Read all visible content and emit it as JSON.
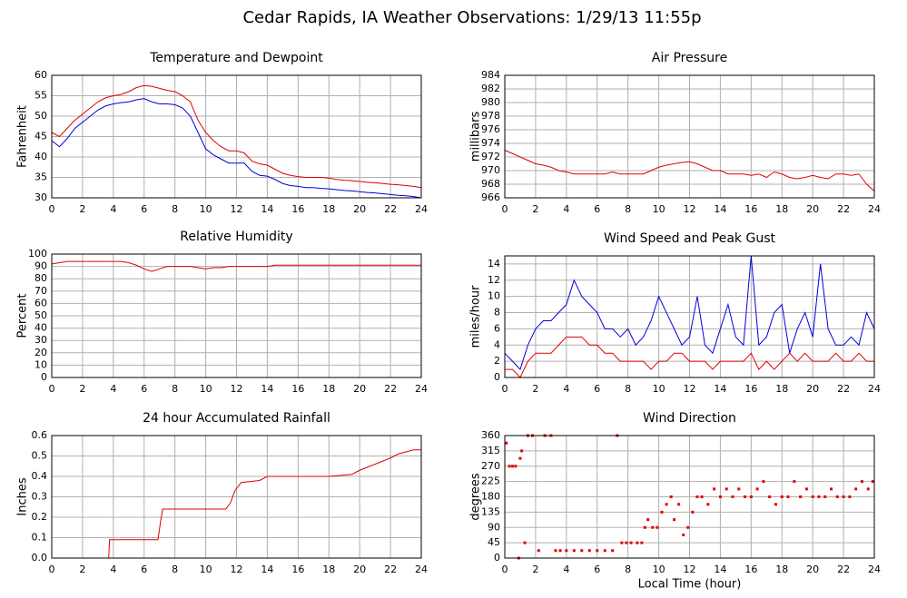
{
  "title": "Cedar Rapids, IA Weather Observations: 1/29/13 11:55p",
  "chart_data": [
    {
      "type": "line",
      "title": "Temperature and Dewpoint",
      "ylabel": "Fahrenheit",
      "x": [
        0,
        0.5,
        1,
        1.5,
        2,
        2.5,
        3,
        3.5,
        4,
        4.5,
        5,
        5.5,
        6,
        6.5,
        7,
        7.5,
        8,
        8.5,
        9,
        9.5,
        10,
        10.5,
        11,
        11.5,
        12,
        12.5,
        13,
        13.5,
        14,
        14.5,
        15,
        15.5,
        16,
        16.5,
        17,
        17.5,
        18,
        18.5,
        19,
        19.5,
        20,
        20.5,
        21,
        21.5,
        22,
        22.5,
        23,
        23.5,
        24
      ],
      "series": [
        {
          "color": "#e00000",
          "values": [
            46,
            45,
            47,
            49,
            50.5,
            52,
            53.5,
            54.5,
            55,
            55.3,
            56,
            57,
            57.5,
            57.3,
            56.8,
            56.3,
            56,
            55,
            53.5,
            49,
            46,
            44,
            42.5,
            41.5,
            41.5,
            41,
            39,
            38.3,
            38,
            37,
            36,
            35.5,
            35.2,
            35,
            35,
            35,
            34.8,
            34.5,
            34.3,
            34.2,
            34,
            33.8,
            33.7,
            33.5,
            33.3,
            33.2,
            33,
            32.8,
            32.5
          ]
        },
        {
          "color": "#0000e0",
          "values": [
            44,
            42.5,
            44.5,
            47,
            48.5,
            50,
            51.5,
            52.5,
            53,
            53.3,
            53.5,
            54,
            54.3,
            53.5,
            53,
            53,
            52.8,
            52,
            50,
            46,
            42,
            40.5,
            39.5,
            38.5,
            38.5,
            38.5,
            36.5,
            35.5,
            35.3,
            34.5,
            33.5,
            33,
            32.8,
            32.5,
            32.5,
            32.3,
            32.2,
            32,
            31.8,
            31.7,
            31.5,
            31.3,
            31.2,
            31,
            30.8,
            30.6,
            30.5,
            30.3,
            30
          ]
        }
      ],
      "xlim": [
        0,
        24
      ],
      "xticks": [
        0,
        2,
        4,
        6,
        8,
        10,
        12,
        14,
        16,
        18,
        20,
        22,
        24
      ],
      "ylim": [
        30,
        60
      ],
      "yticks": [
        30,
        35,
        40,
        45,
        50,
        55,
        60
      ],
      "grid": true
    },
    {
      "type": "line",
      "title": "Air Pressure",
      "ylabel": "millibars",
      "x": [
        0,
        0.5,
        1,
        1.5,
        2,
        2.5,
        3,
        3.5,
        4,
        4.5,
        5,
        5.5,
        6,
        6.5,
        7,
        7.5,
        8,
        8.5,
        9,
        9.5,
        10,
        10.5,
        11,
        11.5,
        12,
        12.5,
        13,
        13.5,
        14,
        14.5,
        15,
        15.5,
        16,
        16.5,
        17,
        17.5,
        18,
        18.5,
        19,
        19.5,
        20,
        20.5,
        21,
        21.5,
        22,
        22.5,
        23,
        23.5,
        24
      ],
      "values": [
        973,
        972.5,
        972,
        971.5,
        971,
        970.8,
        970.5,
        970,
        969.8,
        969.5,
        969.5,
        969.5,
        969.5,
        969.5,
        969.8,
        969.5,
        969.5,
        969.5,
        969.5,
        970,
        970.5,
        970.8,
        971,
        971.2,
        971.3,
        971,
        970.5,
        970,
        970,
        969.5,
        969.5,
        969.5,
        969.3,
        969.5,
        969,
        969.8,
        969.5,
        969,
        968.8,
        969,
        969.3,
        969,
        968.8,
        969.5,
        969.5,
        969.3,
        969.5,
        968,
        967
      ],
      "color": "#e00000",
      "xlim": [
        0,
        24
      ],
      "xticks": [
        0,
        2,
        4,
        6,
        8,
        10,
        12,
        14,
        16,
        18,
        20,
        22,
        24
      ],
      "ylim": [
        966,
        984
      ],
      "yticks": [
        966,
        968,
        970,
        972,
        974,
        976,
        978,
        980,
        982,
        984
      ],
      "grid": true
    },
    {
      "type": "line",
      "title": "Relative Humidity",
      "ylabel": "Percent",
      "x": [
        0,
        0.5,
        1,
        1.5,
        2,
        2.5,
        3,
        3.5,
        4,
        4.5,
        5,
        5.5,
        6,
        6.5,
        7,
        7.5,
        8,
        8.5,
        9,
        9.5,
        10,
        10.5,
        11,
        11.5,
        12,
        12.5,
        13,
        13.5,
        14,
        14.5,
        15,
        15.5,
        16,
        16.5,
        17,
        17.5,
        18,
        18.5,
        19,
        19.5,
        20,
        20.5,
        21,
        21.5,
        22,
        22.5,
        23,
        23.5,
        24
      ],
      "values": [
        92,
        93,
        94,
        94,
        94,
        94,
        94,
        94,
        94,
        94,
        93,
        91,
        88,
        86,
        88,
        90,
        90,
        90,
        90,
        89,
        88,
        89,
        89,
        90,
        90,
        90,
        90,
        90,
        90,
        91,
        91,
        91,
        91,
        91,
        91,
        91,
        91,
        91,
        91,
        91,
        91,
        91,
        91,
        91,
        91,
        91,
        91,
        91,
        91
      ],
      "color": "#e00000",
      "xlim": [
        0,
        24
      ],
      "xticks": [
        0,
        2,
        4,
        6,
        8,
        10,
        12,
        14,
        16,
        18,
        20,
        22,
        24
      ],
      "ylim": [
        0,
        100
      ],
      "yticks": [
        0,
        10,
        20,
        30,
        40,
        50,
        60,
        70,
        80,
        90,
        100
      ],
      "grid": true
    },
    {
      "type": "line",
      "title": "Wind Speed and Peak Gust",
      "ylabel": "miles/hour",
      "x": [
        0,
        0.5,
        1,
        1.5,
        2,
        2.5,
        3,
        3.5,
        4,
        4.5,
        5,
        5.5,
        6,
        6.5,
        7,
        7.5,
        8,
        8.5,
        9,
        9.5,
        10,
        10.5,
        11,
        11.5,
        12,
        12.5,
        13,
        13.5,
        14,
        14.5,
        15,
        15.5,
        16,
        16.5,
        17,
        17.5,
        18,
        18.5,
        19,
        19.5,
        20,
        20.5,
        21,
        21.5,
        22,
        22.5,
        23,
        23.5,
        24
      ],
      "series": [
        {
          "color": "#e00000",
          "values": [
            1,
            1,
            0,
            2,
            3,
            3,
            3,
            4,
            5,
            5,
            5,
            4,
            4,
            3,
            3,
            2,
            2,
            2,
            2,
            1,
            2,
            2,
            3,
            3,
            2,
            2,
            2,
            1,
            2,
            2,
            2,
            2,
            3,
            1,
            2,
            1,
            2,
            3,
            2,
            3,
            2,
            2,
            2,
            3,
            2,
            2,
            3,
            2,
            2
          ]
        },
        {
          "color": "#0000e0",
          "values": [
            3,
            2,
            1,
            4,
            6,
            7,
            7,
            8,
            9,
            12,
            10,
            9,
            8,
            6,
            6,
            5,
            6,
            4,
            5,
            7,
            10,
            8,
            6,
            4,
            5,
            10,
            4,
            3,
            6,
            9,
            5,
            4,
            15,
            4,
            5,
            8,
            9,
            3,
            6,
            8,
            5,
            14,
            6,
            4,
            4,
            5,
            4,
            8,
            6
          ]
        }
      ],
      "xlim": [
        0,
        24
      ],
      "xticks": [
        0,
        2,
        4,
        6,
        8,
        10,
        12,
        14,
        16,
        18,
        20,
        22,
        24
      ],
      "ylim": [
        0,
        15
      ],
      "yticks": [
        0,
        2,
        4,
        6,
        8,
        10,
        12,
        14
      ],
      "grid": true
    },
    {
      "type": "line",
      "title": "24 hour Accumulated Rainfall",
      "ylabel": "Inches",
      "x": [
        0,
        3.7,
        3.75,
        6.9,
        7.05,
        7.2,
        11.3,
        11.6,
        11.9,
        12.3,
        13.5,
        14,
        16,
        18,
        19.5,
        20,
        21,
        22,
        22.5,
        23,
        23.5,
        24
      ],
      "values": [
        0,
        0,
        0.09,
        0.09,
        0.17,
        0.24,
        0.24,
        0.27,
        0.33,
        0.37,
        0.38,
        0.4,
        0.4,
        0.4,
        0.41,
        0.43,
        0.46,
        0.49,
        0.51,
        0.52,
        0.53,
        0.53
      ],
      "color": "#e00000",
      "xlim": [
        0,
        24
      ],
      "xticks": [
        0,
        2,
        4,
        6,
        8,
        10,
        12,
        14,
        16,
        18,
        20,
        22,
        24
      ],
      "ylim": [
        0,
        0.6
      ],
      "yticks": [
        {
          "value": 0,
          "label": "0.0"
        },
        0.1,
        0.2,
        0.3,
        0.4,
        0.5,
        0.6
      ],
      "grid": true
    },
    {
      "type": "scatter",
      "title": "Wind Direction",
      "ylabel": "degrees",
      "xlabel": "Local Time (hour)",
      "x": [
        0.1,
        0.3,
        0.5,
        0.7,
        0.9,
        1.0,
        1.1,
        1.3,
        1.5,
        1.8,
        2.2,
        2.6,
        3.0,
        3.3,
        3.6,
        4.0,
        4.5,
        5.0,
        5.5,
        6.0,
        6.5,
        7.0,
        7.3,
        7.6,
        7.9,
        8.2,
        8.6,
        8.9,
        9.1,
        9.3,
        9.6,
        9.9,
        10.2,
        10.5,
        10.8,
        11.0,
        11.3,
        11.6,
        11.9,
        12.2,
        12.5,
        12.8,
        13.2,
        13.6,
        14.0,
        14.4,
        14.8,
        15.2,
        15.6,
        16.0,
        16.4,
        16.8,
        17.2,
        17.6,
        18.0,
        18.4,
        18.8,
        19.2,
        19.6,
        20.0,
        20.4,
        20.8,
        21.2,
        21.6,
        22.0,
        22.4,
        22.8,
        23.2,
        23.6,
        23.9
      ],
      "values": [
        338,
        270,
        270,
        270,
        0,
        293,
        315,
        45,
        360,
        360,
        22,
        360,
        360,
        22,
        22,
        22,
        22,
        22,
        22,
        22,
        22,
        22,
        360,
        45,
        45,
        45,
        45,
        45,
        90,
        113,
        90,
        90,
        135,
        158,
        180,
        113,
        158,
        68,
        90,
        135,
        180,
        180,
        158,
        203,
        180,
        203,
        180,
        203,
        180,
        180,
        203,
        225,
        180,
        158,
        180,
        180,
        225,
        180,
        203,
        180,
        180,
        180,
        203,
        180,
        180,
        180,
        203,
        225,
        203,
        225
      ],
      "color": "#e00000",
      "xlim": [
        0,
        24
      ],
      "xticks": [
        0,
        2,
        4,
        6,
        8,
        10,
        12,
        14,
        16,
        18,
        20,
        22,
        24
      ],
      "ylim": [
        0,
        360
      ],
      "yticks": [
        0,
        45,
        90,
        135,
        180,
        225,
        270,
        315,
        360
      ],
      "grid": true
    }
  ]
}
